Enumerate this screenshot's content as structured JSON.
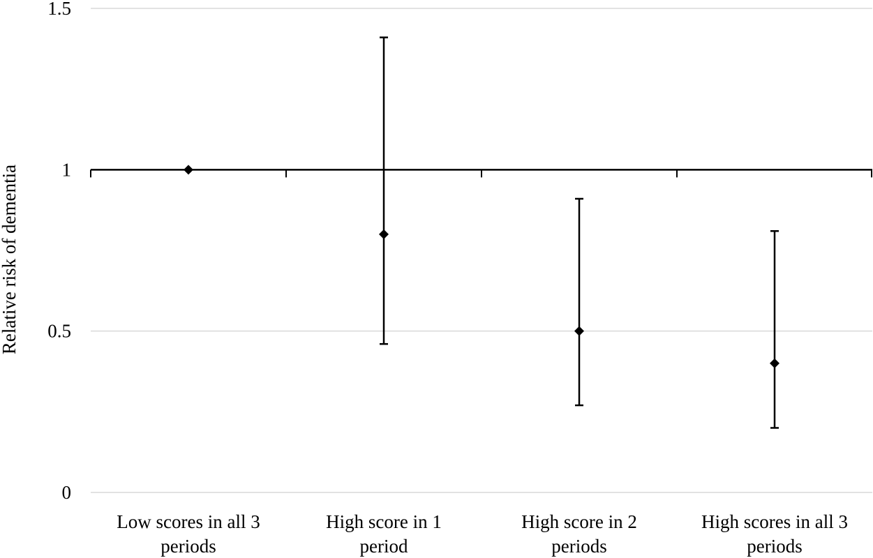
{
  "chart_data": {
    "type": "scatter",
    "title": "",
    "xlabel": "",
    "ylabel": "Relative risk of dementia",
    "categories": [
      [
        "Low scores in all 3",
        "periods"
      ],
      [
        "High score in 1",
        "period"
      ],
      [
        "High score in 2",
        "periods"
      ],
      [
        "High scores in all 3",
        "periods"
      ]
    ],
    "ylim": [
      0,
      1.5
    ],
    "y_ticks": [
      "0",
      "0.5",
      "1",
      "1.5"
    ],
    "y_tick_values": [
      0,
      0.5,
      1,
      1.5
    ],
    "reference_value": 1,
    "grid": true,
    "legend": "none",
    "points": [
      {
        "value": 1.0,
        "lower": null,
        "upper": null
      },
      {
        "value": 0.8,
        "lower": 0.46,
        "upper": 1.41
      },
      {
        "value": 0.5,
        "lower": 0.27,
        "upper": 0.91
      },
      {
        "value": 0.4,
        "lower": 0.2,
        "upper": 0.81
      }
    ],
    "colors": {
      "marker": "#000000",
      "error_bar": "#000000",
      "reference_line": "#000000",
      "gridline": "#d9d9d9"
    }
  }
}
